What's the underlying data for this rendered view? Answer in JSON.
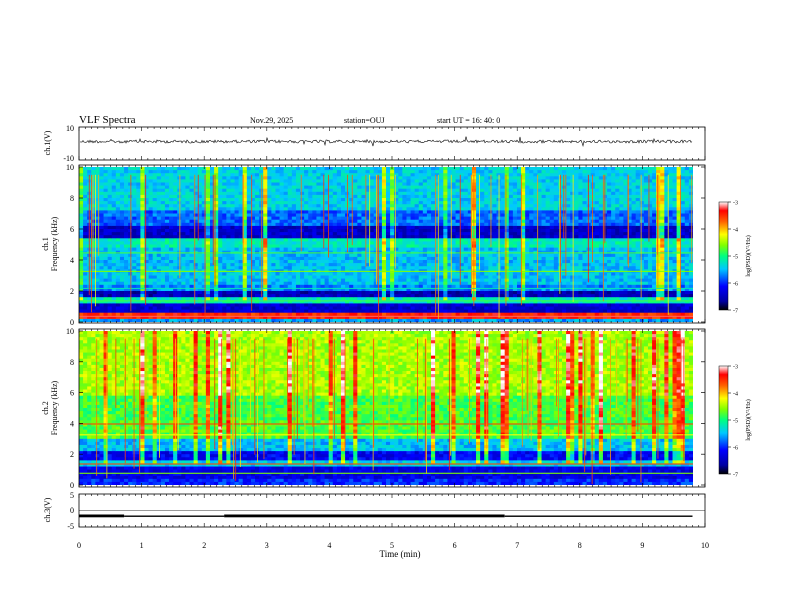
{
  "header": {
    "title": "VLF Spectra",
    "date": "Nov.29, 2025",
    "station": "station=OUJ",
    "start_time": "start  UT =   16: 40: 0"
  },
  "chart_data": [
    {
      "type": "line",
      "id": "ch1-waveform",
      "ylabel": "ch.1(V)",
      "ylim": [
        -10,
        10
      ],
      "yticks": [
        "10",
        "-10"
      ],
      "baseline": 0
    },
    {
      "type": "heatmap",
      "id": "ch1-spectrogram",
      "ylabel_top": "ch.1",
      "ylabel": "Frequency (kHz)",
      "ylim": [
        0,
        10
      ],
      "yticks": [
        "0",
        "2",
        "4",
        "6",
        "8",
        "10"
      ],
      "colorbar": {
        "label": "log(PSD)(V²/Hz)",
        "min": -7,
        "max": -3,
        "ticks": [
          "-3",
          "-4",
          "-5",
          "-6",
          "-7"
        ]
      }
    },
    {
      "type": "heatmap",
      "id": "ch2-spectrogram",
      "ylabel_top": "ch.2",
      "ylabel": "Frequency (kHz)",
      "ylim": [
        0,
        10
      ],
      "yticks": [
        "0",
        "2",
        "4",
        "6",
        "8",
        "10"
      ],
      "colorbar": {
        "label": "log(PSD)(V²/Hz)",
        "min": -7,
        "max": -3,
        "ticks": [
          "-3",
          "-4",
          "-5",
          "-6",
          "-7"
        ]
      }
    },
    {
      "type": "line",
      "id": "ch3-signal",
      "ylabel": "ch.3(V)",
      "ylim": [
        -5,
        5
      ],
      "yticks": [
        "5",
        "0",
        "-5"
      ],
      "segments_min": [
        [
          0.0,
          0.72,
          -1.6
        ],
        [
          0.72,
          2.32,
          -1.9
        ],
        [
          2.32,
          6.8,
          -1.6
        ],
        [
          6.8,
          9.8,
          -1.9
        ]
      ]
    }
  ],
  "xaxis": {
    "label": "Time (min)",
    "xlim": [
      0,
      10
    ],
    "ticks": [
      "0",
      "1",
      "2",
      "3",
      "4",
      "5",
      "6",
      "7",
      "8",
      "9",
      "10"
    ]
  },
  "colors": {
    "background": "#ffffff",
    "axis": "#000000",
    "colormap": [
      "#000080",
      "#0000ff",
      "#00aaff",
      "#00ffff",
      "#00ff80",
      "#80ff00",
      "#ffff00",
      "#ff8000",
      "#ff0000",
      "#ffffff"
    ]
  }
}
